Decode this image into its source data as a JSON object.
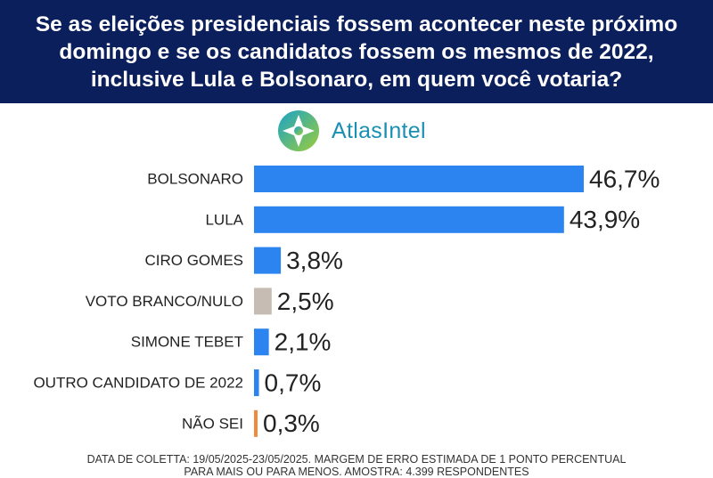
{
  "header": {
    "title": "Se as eleições presidenciais fossem acontecer neste próximo domingo e se os candidatos fossem os mesmos de 2022, inclusive Lula e Bolsonaro, em quem você votaria?"
  },
  "logo": {
    "text_main": "Atlas",
    "text_secondary": "Intel"
  },
  "chart_data": {
    "type": "bar",
    "orientation": "horizontal",
    "categories": [
      "BOLSONARO",
      "LULA",
      "CIRO GOMES",
      "VOTO BRANCO/NULO",
      "SIMONE TEBET",
      "OUTRO CANDIDATO DE 2022",
      "NÃO SEI"
    ],
    "values": [
      46.7,
      43.9,
      3.8,
      2.5,
      2.1,
      0.7,
      0.3
    ],
    "value_labels": [
      "46,7%",
      "43,9%",
      "3,8%",
      "2,5%",
      "2,1%",
      "0,7%",
      "0,3%"
    ],
    "colors": [
      "#2b84f0",
      "#2b84f0",
      "#2b84f0",
      "#c6bcb4",
      "#2b84f0",
      "#2b84f0",
      "#f08a3c"
    ],
    "title": "",
    "xlabel": "",
    "ylabel": "",
    "xlim": [
      0,
      50
    ],
    "grid": false,
    "legend": "none"
  },
  "footer": {
    "line1": "DATA DE COLETTA: 19/05/2025-23/05/2025. MARGEM DE ERRO ESTIMADA DE 1 PONTO PERCENTUAL",
    "line2": "PARA MAIS OU PARA MENOS. AMOSTRA: 4.399 RESPONDENTES"
  }
}
